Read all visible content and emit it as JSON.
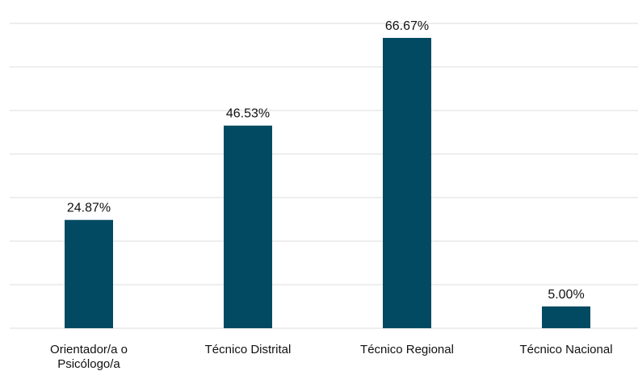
{
  "chart_data": {
    "type": "bar",
    "categories": [
      "Orientador/a o Psicólogo/a",
      "Técnico Distrital",
      "Técnico Regional",
      "Técnico Nacional"
    ],
    "values": [
      24.87,
      46.53,
      66.67,
      5.0
    ],
    "value_labels": [
      "24.87%",
      "46.53%",
      "66.67%",
      "5.00%"
    ],
    "color": "#024a62",
    "ylim": [
      0,
      70
    ],
    "yticks": [
      0,
      10,
      20,
      30,
      40,
      50,
      60,
      70
    ],
    "grid": true
  }
}
